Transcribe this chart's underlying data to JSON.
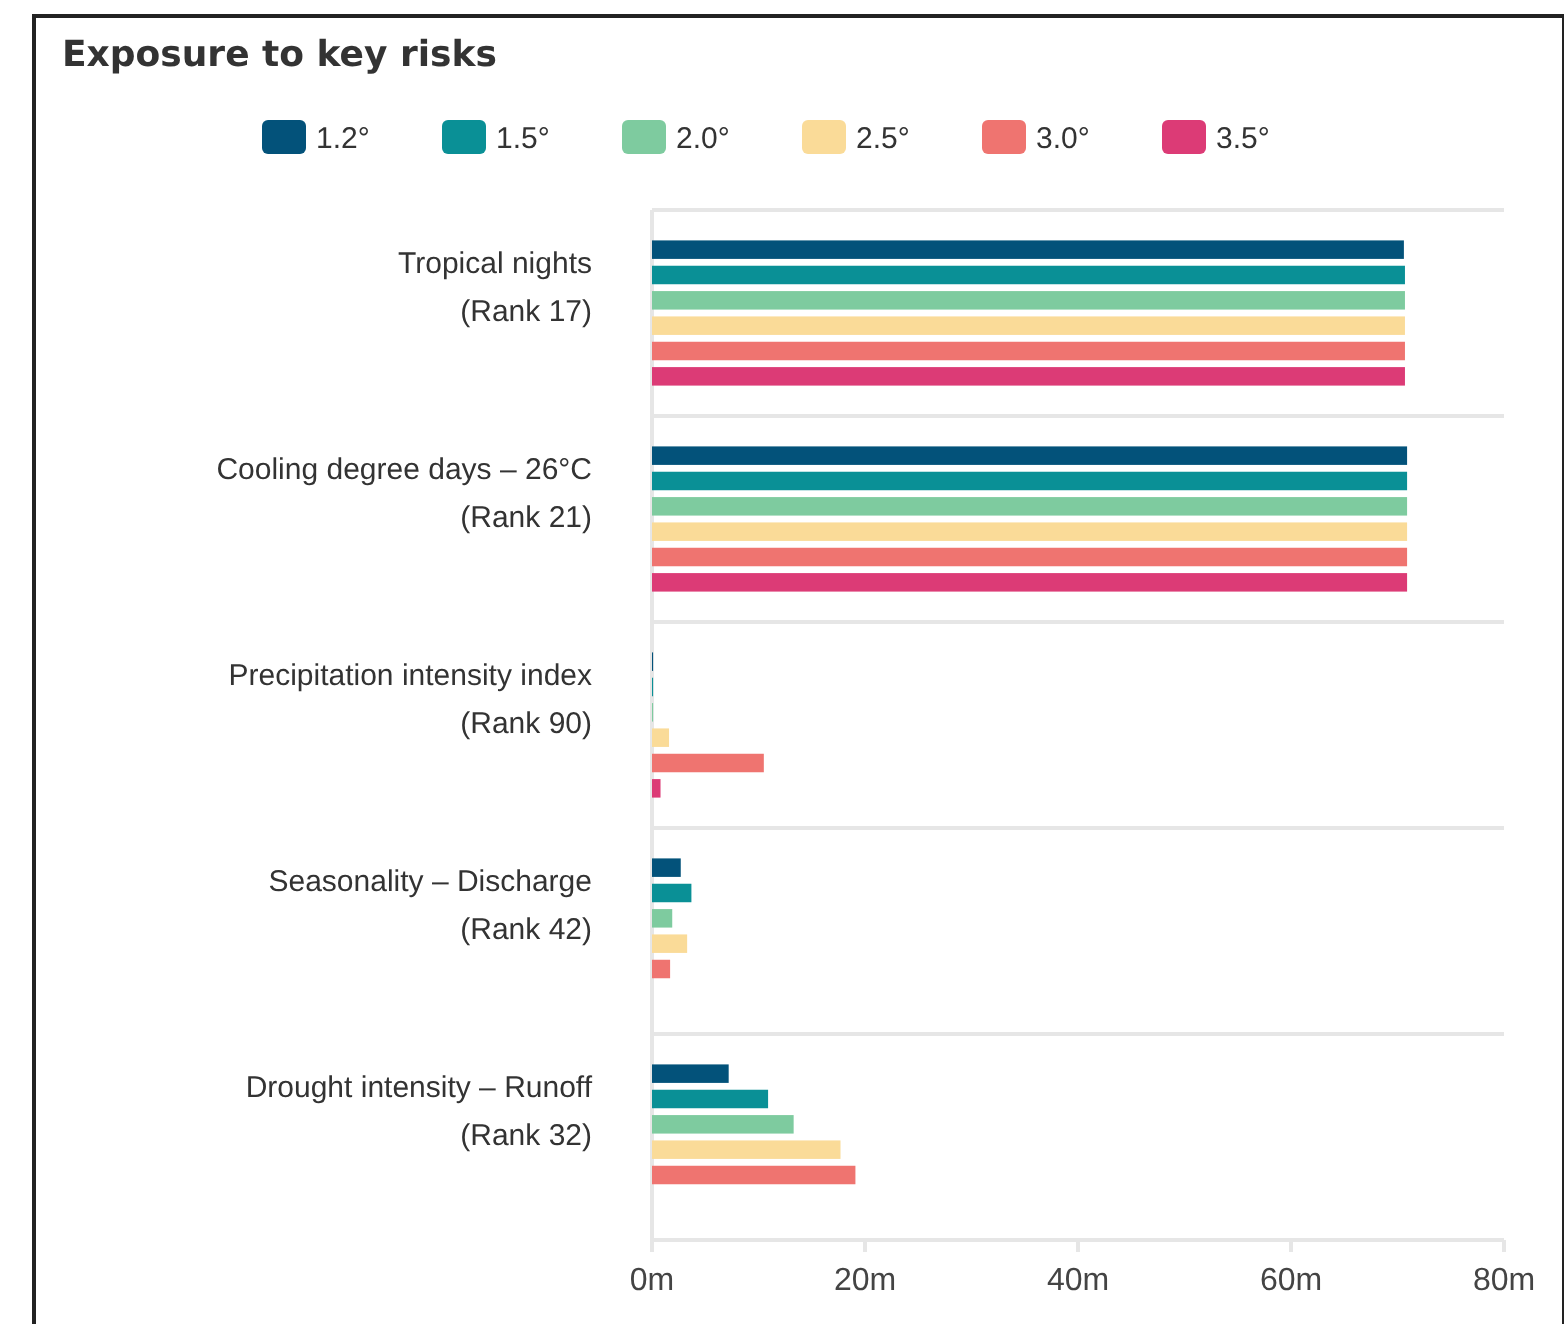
{
  "chart_data": {
    "type": "bar",
    "orientation": "horizontal",
    "title": "Exposure to key risks",
    "categories": [
      "Tropical nights\n(Rank 17)",
      "Cooling degree days – 26°C\n(Rank 21)",
      "Precipitation intensity index\n(Rank 90)",
      "Seasonality – Discharge\n(Rank 42)",
      "Drought intensity – Runoff\n(Rank 32)"
    ],
    "series": [
      {
        "name": "1.2°",
        "color": "#03527a",
        "values": [
          70.6,
          70.9,
          0.1,
          2.7,
          7.2
        ]
      },
      {
        "name": "1.5°",
        "color": "#0a9096",
        "values": [
          70.7,
          70.9,
          0.1,
          3.7,
          10.9
        ]
      },
      {
        "name": "2.0°",
        "color": "#7ecb9f",
        "values": [
          70.7,
          70.9,
          0.1,
          1.9,
          13.3
        ]
      },
      {
        "name": "2.5°",
        "color": "#fadb98",
        "values": [
          70.7,
          70.9,
          1.6,
          3.3,
          17.7
        ]
      },
      {
        "name": "3.0°",
        "color": "#ef7470",
        "values": [
          70.7,
          70.9,
          10.5,
          1.7,
          19.1
        ]
      },
      {
        "name": "3.5°",
        "color": "#dc3b76",
        "values": [
          70.7,
          70.9,
          0.8,
          0,
          0
        ]
      }
    ],
    "xlim": [
      0,
      80
    ],
    "xticks": [
      {
        "value": 0,
        "label": "0m"
      },
      {
        "value": 20,
        "label": "20m"
      },
      {
        "value": 40,
        "label": "40m"
      },
      {
        "value": 60,
        "label": "60m"
      },
      {
        "value": 80,
        "label": "80m"
      }
    ],
    "grid": "y",
    "legend": "top"
  }
}
